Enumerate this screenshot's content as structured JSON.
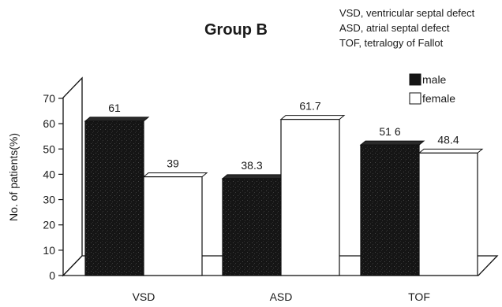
{
  "chart_data": {
    "type": "bar",
    "title": "Group B",
    "ylabel": "No. of patients(%)",
    "xlabel": "",
    "ylim": [
      0,
      70
    ],
    "yticks": [
      0,
      10,
      20,
      30,
      40,
      50,
      60,
      70
    ],
    "categories": [
      "VSD",
      "ASD",
      "TOF"
    ],
    "series": [
      {
        "name": "male",
        "values": [
          61,
          38.3,
          51.6
        ],
        "color": "#151515",
        "value_labels": [
          "61",
          "38.3",
          "51 6"
        ]
      },
      {
        "name": "female",
        "values": [
          39,
          61.7,
          48.4
        ],
        "color": "#ffffff",
        "value_labels": [
          "39",
          "61.7",
          "48.4"
        ]
      }
    ],
    "legend_position": "top-right",
    "three_d": true,
    "grid": false,
    "annotations": [
      "VSD, ventricular septal defect",
      "ASD, atrial septal defect",
      "TOF, tetralogy of Fallot"
    ]
  }
}
